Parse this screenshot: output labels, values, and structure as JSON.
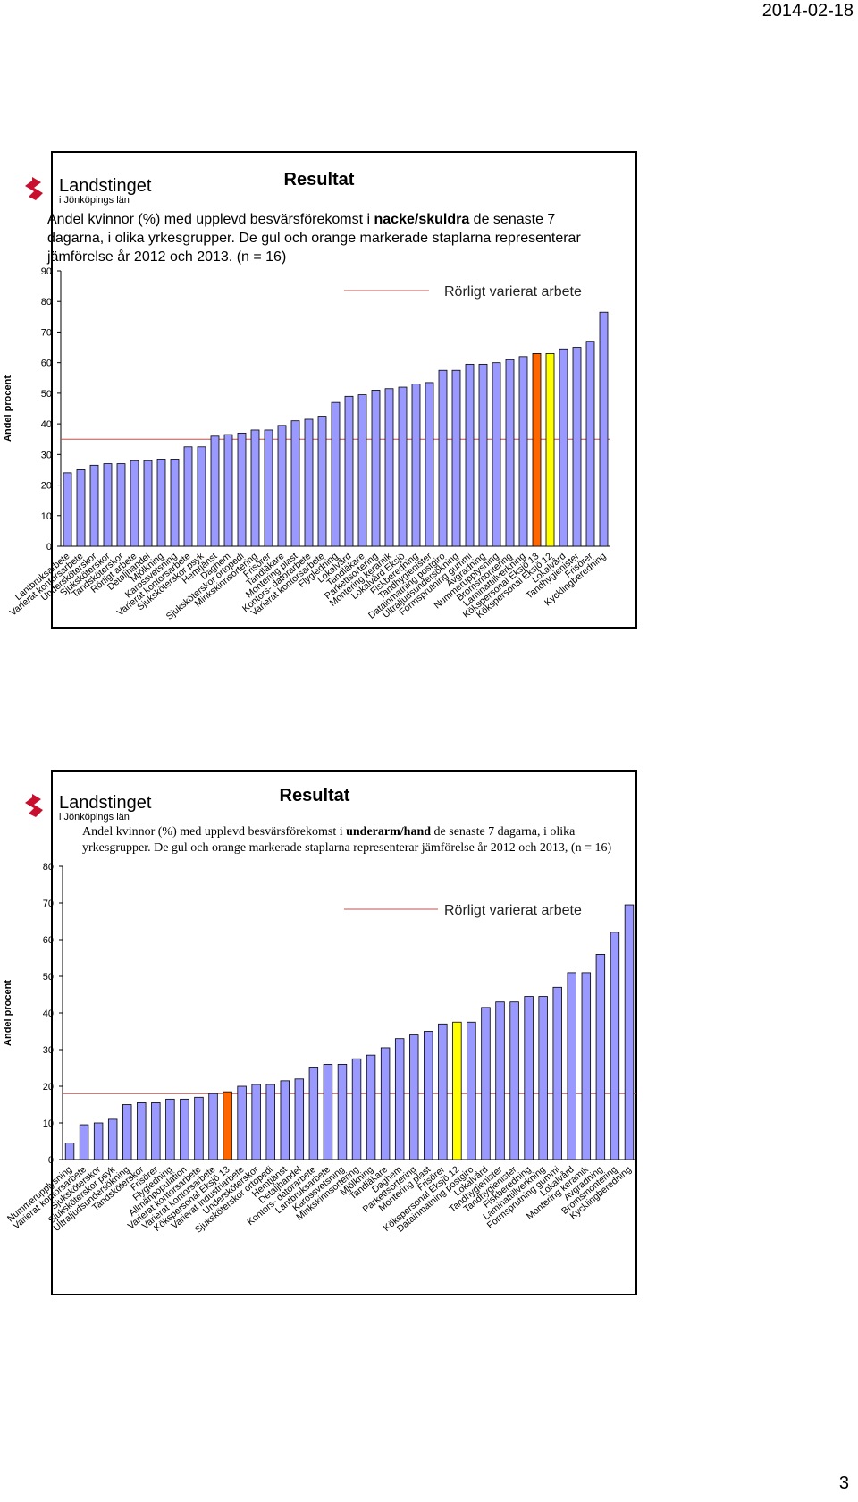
{
  "date": "2014-02-18",
  "page_number": "3",
  "chart_data": [
    {
      "type": "bar",
      "logo": "Landstinget",
      "logo_sub": "i Jönköpings län",
      "title": "Resultat",
      "description": [
        {
          "text": "Andel kvinnor (%) med upplevd besvärsförekomst i ",
          "bold": false
        },
        {
          "text": "nacke/skuldra",
          "bold": true
        },
        {
          "text": " de senaste 7 dagarna, i olika yrkesgrupper. De gul och orange markerade staplarna representerar jämförelse år 2012 och 2013. (n = 16)",
          "bold": false
        }
      ],
      "description_font": "sans",
      "y_label": "Andel procent",
      "categories": [
        "Lantbruksarbete",
        "Varierat kontorsarbete",
        "Undersköterskor",
        "Sjuksköterskor",
        "Tandsköterskor",
        "Rörligt arbete",
        "Detaljhandel",
        "Mjölkning",
        "Karossvetsning",
        "Varierat kontorsarbete",
        "Sjuksköterskor psyk",
        "Hemtjänst",
        "Daghem",
        "Sjuksköterskor ortopedi",
        "Minkskinnsortering",
        "Frisörer",
        "Tandläkare",
        "Montering plast",
        "Kontors- datorarbete",
        "Varierat kontorsarbete",
        "Flygledning",
        "Lokalvård",
        "Tandläkare",
        "Parkettsortering",
        "Montering keramik",
        "Lokalvård Eksjö",
        "Fiskberedning",
        "Tandhygienister",
        "Datainmatning postgiro",
        "Ultraljudsundersökning",
        "Formsprutning gummi",
        "Avgradning",
        "Nummerupplysning",
        "Bromsmontering",
        "Laminattillverkning",
        "Kökspersonal Eksjö 13",
        "Kökspersonal Eksjö 12",
        "Lokalvård",
        "Tandhygienister",
        "Frisörer",
        "Kycklingberedning"
      ],
      "values": [
        24,
        25,
        26.5,
        27,
        27,
        28,
        28,
        28.5,
        28.5,
        32.5,
        32.5,
        36,
        36.5,
        37,
        38,
        38,
        39.5,
        41,
        41.5,
        42.5,
        47,
        49,
        49.5,
        51,
        51.5,
        52,
        53,
        53.5,
        57.5,
        57.5,
        59.5,
        59.5,
        60,
        61,
        62,
        63,
        63,
        64.5,
        65,
        67,
        76.5
      ],
      "colors": [
        "#9999ff",
        "#9999ff",
        "#9999ff",
        "#9999ff",
        "#9999ff",
        "#9999ff",
        "#9999ff",
        "#9999ff",
        "#9999ff",
        "#9999ff",
        "#9999ff",
        "#9999ff",
        "#9999ff",
        "#9999ff",
        "#9999ff",
        "#9999ff",
        "#9999ff",
        "#9999ff",
        "#9999ff",
        "#9999ff",
        "#9999ff",
        "#9999ff",
        "#9999ff",
        "#9999ff",
        "#9999ff",
        "#9999ff",
        "#9999ff",
        "#9999ff",
        "#9999ff",
        "#9999ff",
        "#9999ff",
        "#9999ff",
        "#9999ff",
        "#9999ff",
        "#9999ff",
        "#ff6600",
        "#ffff00",
        "#9999ff",
        "#9999ff",
        "#9999ff",
        "#9999ff"
      ],
      "reference_line": {
        "value": 35,
        "label": "Rörligt varierat arbete",
        "color": "#c0504d"
      },
      "ylim": [
        0,
        90
      ],
      "yticks": [
        0,
        10,
        20,
        30,
        40,
        50,
        60,
        70,
        80,
        90
      ]
    },
    {
      "type": "bar",
      "logo": "Landstinget",
      "logo_sub": "i Jönköpings län",
      "title": "Resultat",
      "description": [
        {
          "text": "Andel kvinnor (%) med upplevd besvärsförekomst i ",
          "bold": false
        },
        {
          "text": "underarm/hand",
          "bold": true
        },
        {
          "text": " de senaste 7 dagarna, i olika yrkesgrupper. De gul och orange markerade staplarna representerar jämförelse år 2012 och 2013, (n = 16)",
          "bold": false
        }
      ],
      "description_font": "serif",
      "y_label": "Andel procent",
      "categories": [
        "Nummerupplysning",
        "Varierat kontorsarbete",
        "Sjuksköterskor",
        "Sjuksköterskor psyk",
        "Ultraljudsundersökning",
        "Tandsköterskor",
        "Frisörer",
        "Flygledning",
        "Allmänpopulation",
        "Varierat kontorsarbete",
        "Varierat kontorsarbete",
        "Kökspersonal Eksjö 13",
        "Varierat industriarbete",
        "Undersköterskor",
        "Sjuksköterskor ortopedi",
        "Hemtjänst",
        "Detaljhandel",
        "Kontors- datorarbete",
        "Lantbruksarbete",
        "Karossvetsning",
        "Minkskinnsortering",
        "Mjölkning",
        "Tandläkare",
        "Daghem",
        "Parkettsortering",
        "Montering plast",
        "Frisörer",
        "Kökspersonal Eksjö 12",
        "Datainmatning postgiro",
        "Lokalvård",
        "Tandhygienister",
        "Tandhygienister",
        "Fiskberedning",
        "Laminattillverkning",
        "Formsprutning gummi",
        "Lokalvård",
        "Montering keramik",
        "Avgradning",
        "Bromsmontering",
        "Kycklingberedning"
      ],
      "values": [
        4.5,
        9.5,
        10,
        11,
        15,
        15.5,
        15.5,
        16.5,
        16.5,
        17,
        18,
        18.5,
        20,
        20.5,
        20.5,
        21.5,
        22,
        25,
        26,
        26,
        27.5,
        28.5,
        30.5,
        33,
        34,
        35,
        37,
        37.5,
        37.5,
        41.5,
        43,
        43,
        44.5,
        44.5,
        47,
        51,
        51,
        56,
        62,
        69.5
      ],
      "colors": [
        "#9999ff",
        "#9999ff",
        "#9999ff",
        "#9999ff",
        "#9999ff",
        "#9999ff",
        "#9999ff",
        "#9999ff",
        "#9999ff",
        "#9999ff",
        "#9999ff",
        "#ff6600",
        "#9999ff",
        "#9999ff",
        "#9999ff",
        "#9999ff",
        "#9999ff",
        "#9999ff",
        "#9999ff",
        "#9999ff",
        "#9999ff",
        "#9999ff",
        "#9999ff",
        "#9999ff",
        "#9999ff",
        "#9999ff",
        "#9999ff",
        "#ffff00",
        "#9999ff",
        "#9999ff",
        "#9999ff",
        "#9999ff",
        "#9999ff",
        "#9999ff",
        "#9999ff",
        "#9999ff",
        "#9999ff",
        "#9999ff",
        "#9999ff",
        "#9999ff"
      ],
      "reference_line": {
        "value": 18,
        "label": "Rörligt varierat arbete",
        "color": "#c0504d"
      },
      "ylim": [
        0,
        80
      ],
      "yticks": [
        0,
        10,
        20,
        30,
        40,
        50,
        60,
        70,
        80
      ]
    }
  ]
}
